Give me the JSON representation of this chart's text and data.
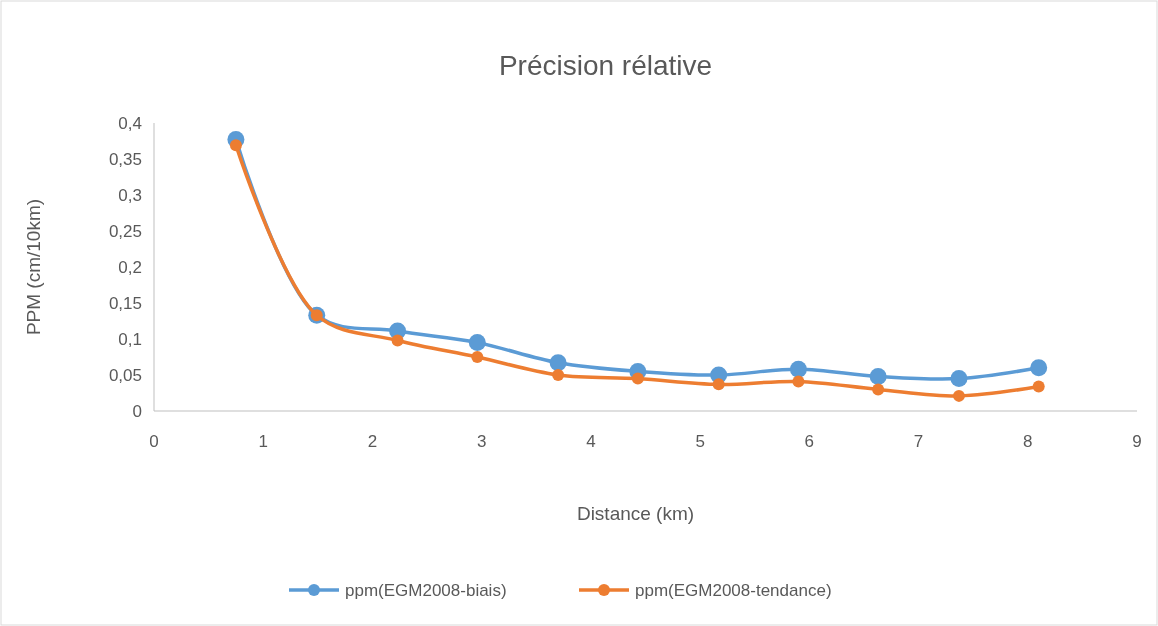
{
  "chart_data": {
    "type": "line",
    "title": "Précision rélative",
    "xlabel": "Distance (km)",
    "ylabel": "PPM (cm/10km)",
    "x": [
      0.75,
      1.49,
      2.23,
      2.96,
      3.7,
      4.43,
      5.17,
      5.9,
      6.63,
      7.37,
      8.1
    ],
    "series": [
      {
        "name": "ppm(EGM2008-biais)",
        "color": "#5b9bd5",
        "values": [
          0.377,
          0.133,
          0.111,
          0.095,
          0.067,
          0.055,
          0.05,
          0.058,
          0.048,
          0.045,
          0.06
        ]
      },
      {
        "name": "ppm(EGM2008-tendance)",
        "color": "#ed7d31",
        "values": [
          0.369,
          0.133,
          0.098,
          0.075,
          0.05,
          0.045,
          0.037,
          0.041,
          0.03,
          0.021,
          0.034
        ]
      }
    ],
    "xlim": [
      0,
      9
    ],
    "xticks": [
      0,
      1,
      2,
      3,
      4,
      5,
      6,
      7,
      8,
      9
    ],
    "ylim": [
      0,
      0.4
    ],
    "yticks": [
      {
        "value": 0,
        "label": "0"
      },
      {
        "value": 0.05,
        "label": "0,05"
      },
      {
        "value": 0.1,
        "label": "0,1"
      },
      {
        "value": 0.15,
        "label": "0,15"
      },
      {
        "value": 0.2,
        "label": "0,2"
      },
      {
        "value": 0.25,
        "label": "0,25"
      },
      {
        "value": 0.3,
        "label": "0,3"
      },
      {
        "value": 0.35,
        "label": "0,35"
      },
      {
        "value": 0.4,
        "label": "0,4"
      }
    ],
    "grid": false,
    "legend": "bottom",
    "marker": "circle",
    "line_style": "solid"
  }
}
